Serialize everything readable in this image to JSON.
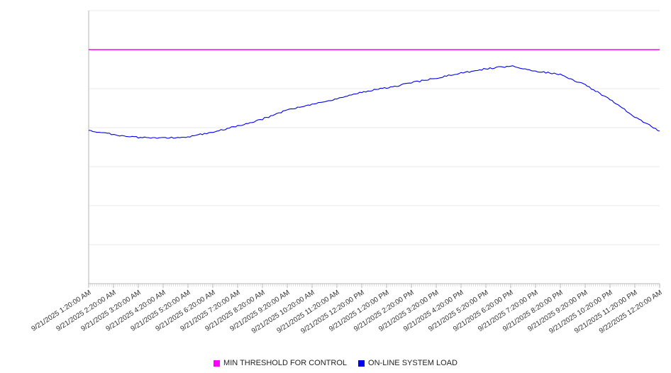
{
  "chart_data": {
    "type": "line",
    "title": "",
    "xlabel": "",
    "ylabel": "",
    "ylim": [
      0,
      7
    ],
    "grid": true,
    "legend_position": "bottom",
    "y_tick_labels_visible": false,
    "x": [
      "9/21/2025 1:20:00 AM",
      "9/21/2025 2:20:00 AM",
      "9/21/2025 3:20:00 AM",
      "9/21/2025 4:20:00 AM",
      "9/21/2025 5:20:00 AM",
      "9/21/2025 6:20:00 AM",
      "9/21/2025 7:20:00 AM",
      "9/21/2025 8:20:00 AM",
      "9/21/2025 9:20:00 AM",
      "9/21/2025 10:20:00 AM",
      "9/21/2025 11:20:00 AM",
      "9/21/2025 12:20:00 PM",
      "9/21/2025 1:20:00 PM",
      "9/21/2025 2:20:00 PM",
      "9/21/2025 3:20:00 PM",
      "9/21/2025 4:20:00 PM",
      "9/21/2025 5:20:00 PM",
      "9/21/2025 6:20:00 PM",
      "9/21/2025 7:20:00 PM",
      "9/21/2025 8:20:00 PM",
      "9/21/2025 9:20:00 PM",
      "9/21/2025 10:20:00 PM",
      "9/21/2025 11:20:00 PM",
      "9/22/2025 12:20:00 AM"
    ],
    "series": [
      {
        "name": "MIN THRESHOLD FOR CONTROL",
        "color": "#ff00ff",
        "constant_value": 6.0
      },
      {
        "name": "ON-LINE SYSTEM LOAD",
        "color": "#0000ee",
        "values": [
          3.93,
          3.82,
          3.75,
          3.73,
          3.76,
          3.89,
          4.04,
          4.22,
          4.45,
          4.6,
          4.73,
          4.91,
          5.02,
          5.15,
          5.27,
          5.4,
          5.51,
          5.58,
          5.45,
          5.36,
          5.09,
          4.73,
          4.27,
          3.91
        ]
      }
    ]
  },
  "legend": {
    "items": [
      {
        "label": "MIN THRESHOLD FOR CONTROL",
        "color": "#ff00ff"
      },
      {
        "label": "ON-LINE SYSTEM LOAD",
        "color": "#0000ee"
      }
    ]
  }
}
